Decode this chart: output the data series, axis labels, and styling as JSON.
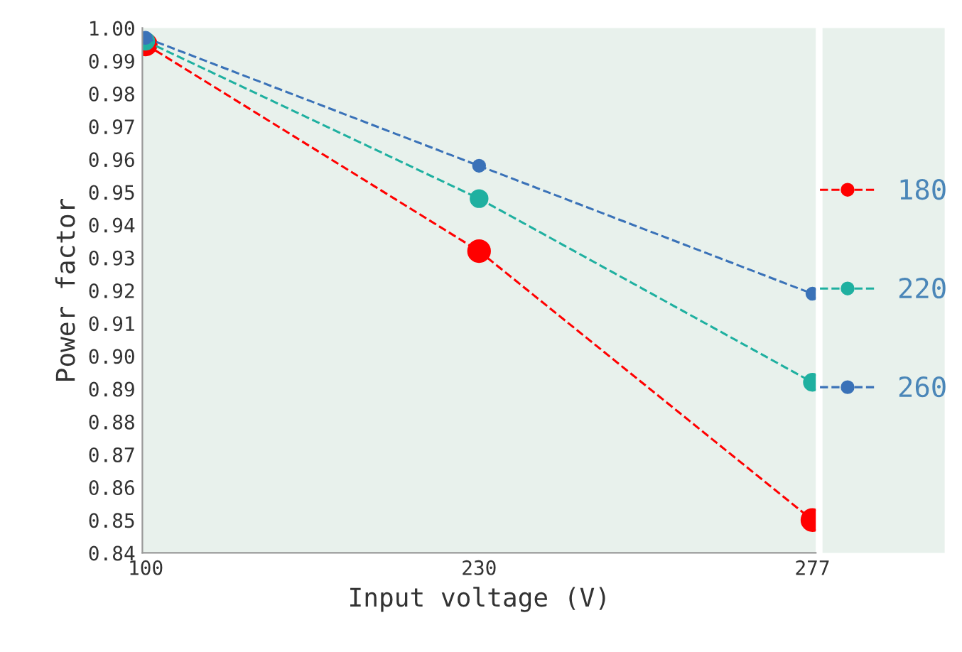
{
  "chart_data": {
    "type": "line",
    "xlabel": "Input voltage (V)",
    "ylabel": "Power factor",
    "categories": [
      "100",
      "230",
      "277"
    ],
    "series": [
      {
        "name": "180",
        "color": "#ff0000",
        "values": [
          0.995,
          0.932,
          0.85
        ]
      },
      {
        "name": "220",
        "color": "#1fb0a0",
        "values": [
          0.996,
          0.948,
          0.892
        ]
      },
      {
        "name": "260",
        "color": "#3a72b8",
        "values": [
          0.997,
          0.958,
          0.919
        ]
      }
    ],
    "ylim": [
      0.84,
      1.0
    ],
    "yticks": [
      {
        "value": 0.84,
        "label": "0.84"
      },
      {
        "value": 0.85,
        "label": "0.85"
      },
      {
        "value": 0.86,
        "label": "0.86"
      },
      {
        "value": 0.87,
        "label": "0.87"
      },
      {
        "value": 0.88,
        "label": "0.88"
      },
      {
        "value": 0.89,
        "label": "0.89"
      },
      {
        "value": 0.9,
        "label": "0.90"
      },
      {
        "value": 0.91,
        "label": "0.91"
      },
      {
        "value": 0.92,
        "label": "0.92"
      },
      {
        "value": 0.93,
        "label": "0.93"
      },
      {
        "value": 0.94,
        "label": "0.94"
      },
      {
        "value": 0.95,
        "label": "0.95"
      },
      {
        "value": 0.96,
        "label": "0.96"
      },
      {
        "value": 0.97,
        "label": "0.97"
      },
      {
        "value": 0.98,
        "label": "0.98"
      },
      {
        "value": 0.99,
        "label": "0.99"
      },
      {
        "value": 1.0,
        "label": "1.00"
      }
    ],
    "grid": false,
    "legend": "right",
    "marker": "circle",
    "line_style": "dashed"
  }
}
